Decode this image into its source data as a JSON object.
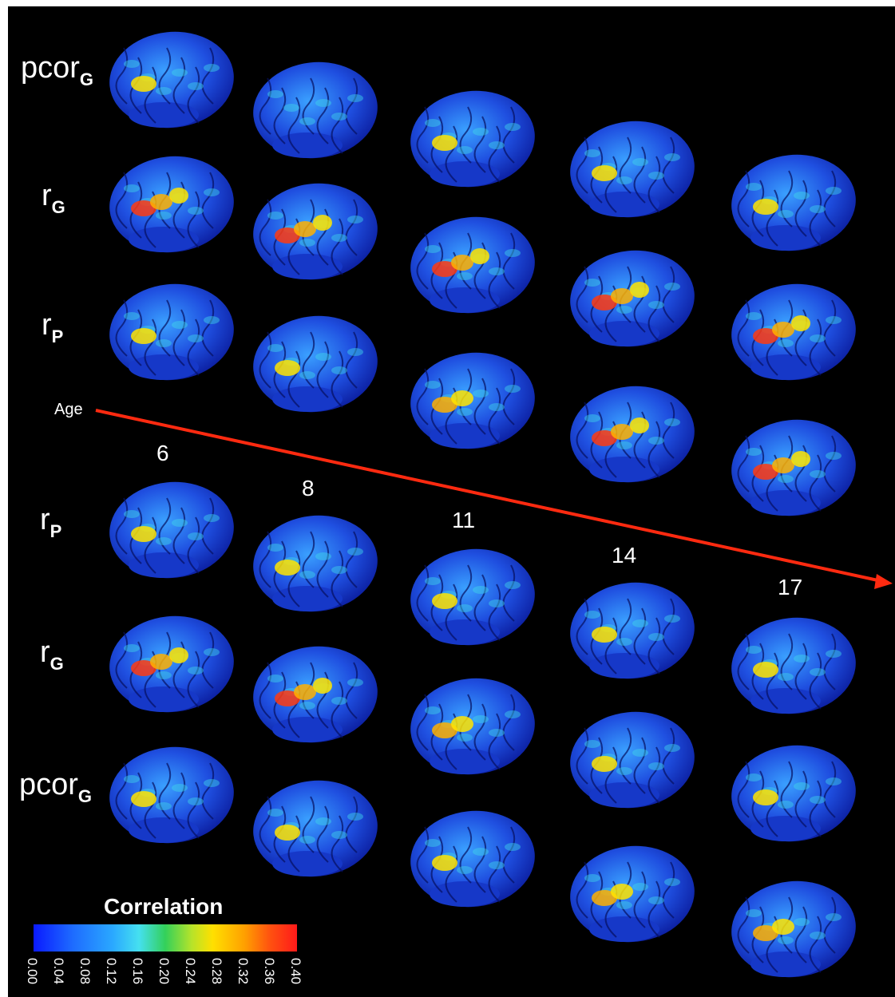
{
  "row_labels": {
    "top": [
      {
        "main": "pcor",
        "sub": "G"
      },
      {
        "main": "r",
        "sub": "G"
      },
      {
        "main": "r",
        "sub": "P"
      }
    ],
    "bottom": [
      {
        "main": "r",
        "sub": "P"
      },
      {
        "main": "r",
        "sub": "G"
      },
      {
        "main": "pcor",
        "sub": "G"
      }
    ]
  },
  "age": {
    "label": "Age",
    "values": [
      "6",
      "8",
      "11",
      "14",
      "17"
    ],
    "arrow_color": "#ff2a10"
  },
  "colorbar": {
    "title": "Correlation",
    "ticks": [
      "0.00",
      "0.04",
      "0.08",
      "0.12",
      "0.16",
      "0.20",
      "0.24",
      "0.28",
      "0.32",
      "0.36",
      "0.40"
    ],
    "range": [
      0.0,
      0.4
    ],
    "colors": [
      "#0a1aff",
      "#2aa8ff",
      "#45e0f0",
      "#33d05a",
      "#ffe000",
      "#ffa000",
      "#ff1a1a"
    ]
  }
}
